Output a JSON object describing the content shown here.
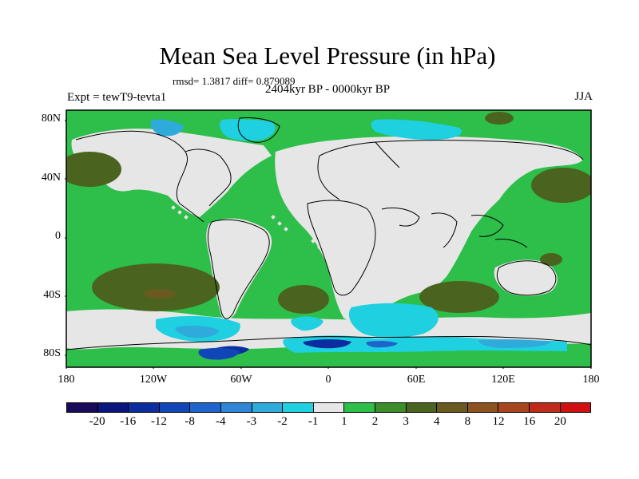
{
  "title": "Mean Sea Level Pressure (in hPa)",
  "stats": "rmsd= 1.3817 diff= 0.879089",
  "subtitle": "2404kyr BP - 0000kyr BP",
  "experiment": "Expt = tewT9-tevta1",
  "season": "JJA",
  "lat_labels": [
    "80N",
    "40N",
    "0",
    "40S",
    "80S"
  ],
  "lon_labels": [
    "180",
    "120W",
    "60W",
    "0",
    "60E",
    "120E",
    "180"
  ],
  "colorbar": {
    "colors": [
      "#1a0a5c",
      "#0a1680",
      "#0c2da0",
      "#1146b8",
      "#1e64cc",
      "#2f86d8",
      "#2eaadb",
      "#1ed0e0",
      "#e6e6e6",
      "#2dbf4a",
      "#3d8d2a",
      "#4a6420",
      "#6b5a1f",
      "#8c5220",
      "#a84520",
      "#c02a1a",
      "#d01010"
    ],
    "labels": [
      "-20",
      "-16",
      "-12",
      "-8",
      "-4",
      "-3",
      "-2",
      "-1",
      "1",
      "2",
      "3",
      "4",
      "8",
      "12",
      "16",
      "20"
    ]
  },
  "colors": {
    "ocean_positive": "#2dbf4a",
    "ocean_strong": "#4a6420",
    "neutral": "#e6e6e6",
    "negative_light": "#1ed0e0",
    "negative_mid": "#2eaadb",
    "negative_strong": "#0c2da0",
    "coastline": "#000000"
  }
}
